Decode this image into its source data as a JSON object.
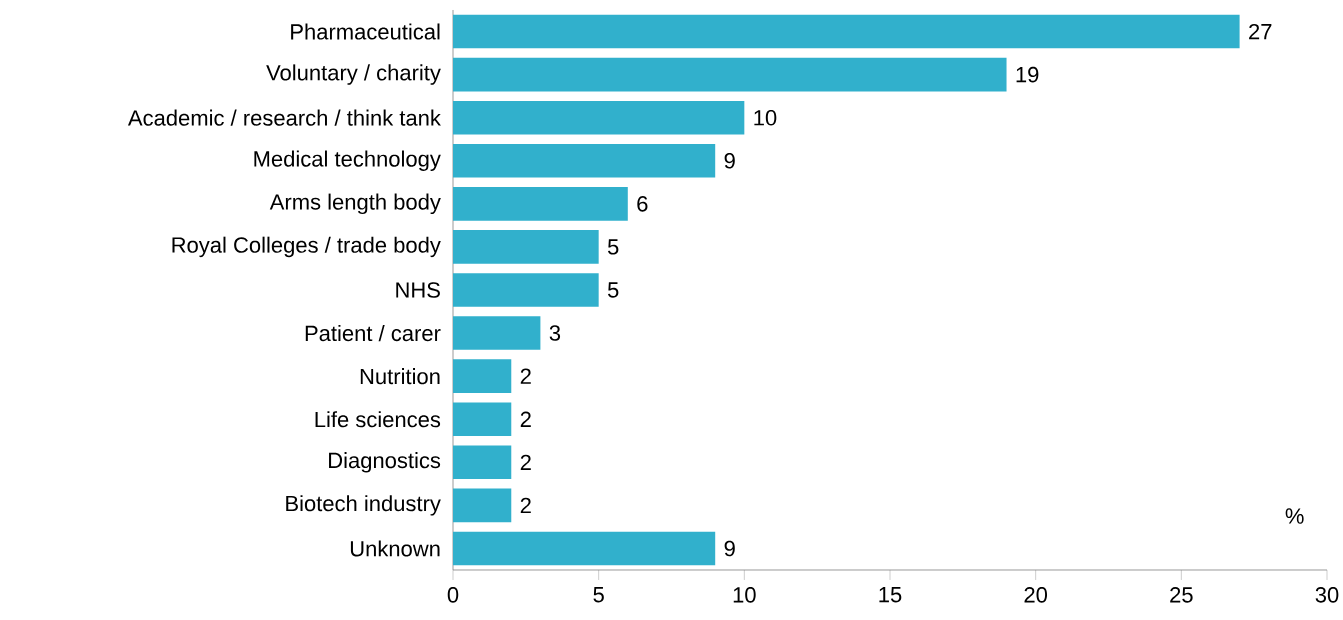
{
  "chart_data": {
    "type": "bar",
    "orientation": "horizontal",
    "xlabel": "%",
    "categories": [
      "Pharmaceutical",
      "Voluntary / charity",
      "Academic / research / think tank",
      "Medical technology",
      "Arms length body",
      "Royal Colleges / trade body",
      "NHS",
      "Patient / carer",
      "Nutrition",
      "Life sciences",
      "Diagnostics",
      "Biotech industry",
      "Unknown"
    ],
    "values": [
      27,
      19,
      10,
      9,
      6,
      5,
      5,
      3,
      2,
      2,
      2,
      2,
      9
    ],
    "color": "#31b0cc",
    "xlim": [
      0,
      30
    ],
    "xticks": [
      0,
      5,
      10,
      15,
      20,
      25,
      30
    ],
    "data_labels": true
  }
}
